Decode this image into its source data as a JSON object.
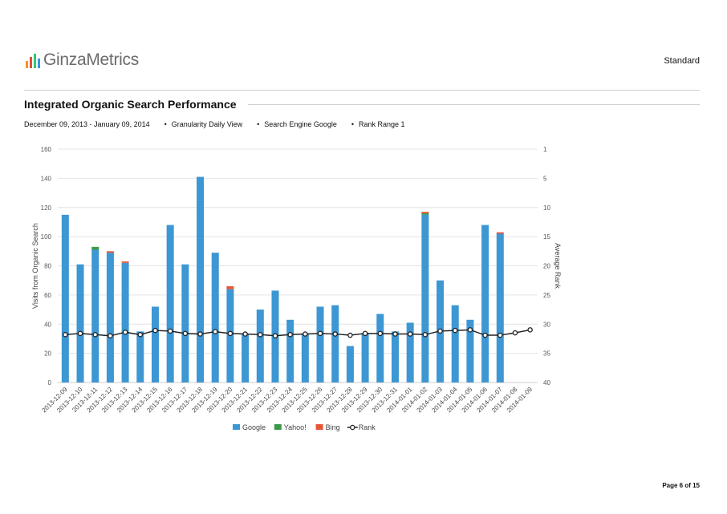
{
  "header": {
    "logo_text": "GinzaMetrics",
    "logo_bar_colors": [
      "#f7931e",
      "#e74c3c",
      "#2ecc71",
      "#3498db"
    ],
    "plan_label": "Standard"
  },
  "report": {
    "title": "Integrated Organic Search Performance",
    "date_range": "December 09, 2013 - January 09, 2014",
    "granularity": "Granularity Daily View",
    "search_engine": "Search Engine Google",
    "rank_range": "Rank Range 1"
  },
  "chart_data": {
    "type": "bar",
    "categories": [
      "2013-12-09",
      "2013-12-10",
      "2013-12-11",
      "2013-12-12",
      "2013-12-13",
      "2013-12-14",
      "2013-12-15",
      "2013-12-16",
      "2013-12-17",
      "2013-12-18",
      "2013-12-19",
      "2013-12-20",
      "2013-12-21",
      "2013-12-22",
      "2013-12-23",
      "2013-12-24",
      "2013-12-25",
      "2013-12-26",
      "2013-12-27",
      "2013-12-28",
      "2013-12-29",
      "2013-12-30",
      "2013-12-31",
      "2014-01-01",
      "2014-01-02",
      "2014-01-03",
      "2014-01-04",
      "2014-01-05",
      "2014-01-06",
      "2014-01-07",
      "2014-01-08",
      "2014-01-09"
    ],
    "series": [
      {
        "name": "Google",
        "type": "bar",
        "color": "#3d97d3",
        "values": [
          115,
          81,
          91,
          89,
          82,
          35,
          52,
          108,
          81,
          141,
          89,
          64,
          33,
          50,
          63,
          43,
          33,
          52,
          53,
          25,
          34,
          47,
          35,
          41,
          115,
          70,
          53,
          43,
          108,
          102,
          0,
          0
        ]
      },
      {
        "name": "Yahoo!",
        "type": "bar",
        "color": "#3a9a4a",
        "values": [
          0,
          0,
          2,
          0,
          0,
          0,
          0,
          0,
          0,
          0,
          0,
          0,
          0,
          0,
          0,
          0,
          0,
          0,
          0,
          0,
          0,
          0,
          0,
          0,
          1,
          0,
          0,
          0,
          0,
          0,
          0,
          0
        ]
      },
      {
        "name": "Bing",
        "type": "bar",
        "color": "#e8563a",
        "values": [
          0,
          0,
          0,
          1,
          1,
          0,
          0,
          0,
          0,
          0,
          0,
          2,
          0,
          0,
          0,
          0,
          0,
          0,
          0,
          0,
          0,
          0,
          0,
          0,
          1,
          0,
          0,
          0,
          0,
          1,
          0,
          0
        ]
      },
      {
        "name": "Rank",
        "type": "line",
        "axis": "right",
        "color": "#222222",
        "values": [
          32,
          31.8,
          32,
          32.2,
          31.6,
          32,
          31.3,
          31.4,
          31.8,
          31.9,
          31.5,
          31.8,
          31.9,
          32,
          32.2,
          32,
          31.9,
          31.8,
          31.9,
          32.1,
          31.8,
          31.8,
          31.9,
          31.9,
          32,
          31.4,
          31.3,
          31.2,
          32.1,
          32.1,
          31.7,
          31.2
        ]
      }
    ],
    "xlabel": "",
    "ylabel": "Visits from Organic Search",
    "y2label": "Average Rank",
    "ylim": [
      0,
      160
    ],
    "y2lim": [
      1,
      40
    ],
    "y2_reversed": true,
    "yticks": [
      "0",
      "20",
      "40",
      "60",
      "80",
      "100",
      "120",
      "140",
      "160"
    ],
    "y2ticks": [
      "1",
      "5",
      "10",
      "15",
      "20",
      "25",
      "30",
      "35",
      "40"
    ],
    "grid": true,
    "legend_position": "bottom-center"
  },
  "footer": {
    "page_label": "Page 6 of 15"
  }
}
